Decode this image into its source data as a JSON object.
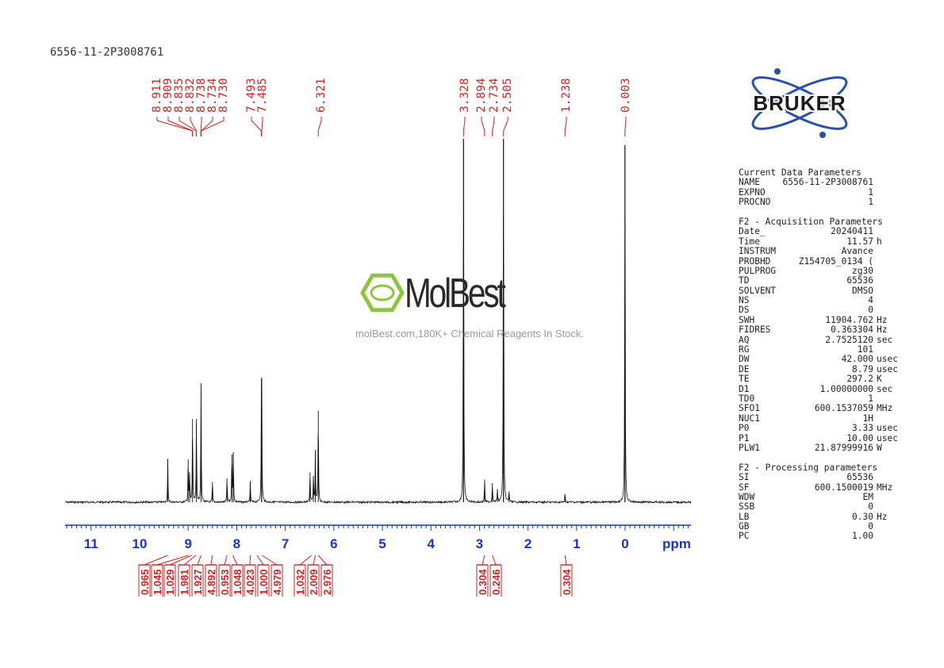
{
  "sample_name": "6556-11-2P3008761",
  "logo": {
    "text": "BRUKER",
    "color_blue": "#2b50a8",
    "color_dark": "#1a1a1a"
  },
  "watermark": {
    "brand": "MolBest",
    "caption": "molBest.com,180K+ Chemical Reagents In Stock.",
    "brand_green": "#8cc63f"
  },
  "colors": {
    "peak_label": "#d22020",
    "axis": "#1a33cc",
    "integral": "#d22020",
    "spectrum": "#111111"
  },
  "chart_data": {
    "type": "line",
    "title": "",
    "xlabel": "ppm",
    "xlim": [
      11.5,
      -1.3
    ],
    "x_direction": "reversed",
    "ticks": [
      11,
      10,
      9,
      8,
      7,
      6,
      5,
      4,
      3,
      2,
      1,
      0
    ],
    "peak_labels": [
      "8.911",
      "8.909",
      "8.835",
      "8.832",
      "8.738",
      "8.734",
      "8.730",
      "7.493",
      "7.485",
      "6.321",
      "3.328",
      "2.894",
      "2.734",
      "2.505",
      "1.238",
      "0.003"
    ],
    "peaks": [
      {
        "ppm": 9.42,
        "h": 0.36
      },
      {
        "ppm": 9.0,
        "h": 0.36
      },
      {
        "ppm": 8.97,
        "h": 0.23
      },
      {
        "ppm": 8.91,
        "h": 0.7
      },
      {
        "ppm": 8.83,
        "h": 0.7
      },
      {
        "ppm": 8.735,
        "h": 1.0
      },
      {
        "ppm": 8.5,
        "h": 0.17
      },
      {
        "ppm": 8.2,
        "h": 0.2
      },
      {
        "ppm": 8.1,
        "h": 0.4
      },
      {
        "ppm": 8.07,
        "h": 0.42
      },
      {
        "ppm": 7.72,
        "h": 0.17
      },
      {
        "ppm": 7.49,
        "h": 0.8
      },
      {
        "ppm": 7.485,
        "h": 0.7
      },
      {
        "ppm": 6.49,
        "h": 0.25
      },
      {
        "ppm": 6.42,
        "h": 0.22
      },
      {
        "ppm": 6.38,
        "h": 0.43
      },
      {
        "ppm": 6.32,
        "h": 0.77
      },
      {
        "ppm": 3.328,
        "h": 3.1
      },
      {
        "ppm": 2.894,
        "h": 0.19
      },
      {
        "ppm": 2.734,
        "h": 0.16
      },
      {
        "ppm": 2.63,
        "h": 0.11
      },
      {
        "ppm": 2.505,
        "h": 3.1
      },
      {
        "ppm": 2.39,
        "h": 0.09
      },
      {
        "ppm": 1.238,
        "h": 0.07
      },
      {
        "ppm": 0.003,
        "h": 3.0
      }
    ],
    "integrals": [
      {
        "ppm": 9.42,
        "value": "0.965"
      },
      {
        "ppm": 9.0,
        "value": "1.045"
      },
      {
        "ppm": 8.93,
        "value": "1.029"
      },
      {
        "ppm": 8.84,
        "value": "1.981"
      },
      {
        "ppm": 8.735,
        "value": "1.927"
      },
      {
        "ppm": 8.5,
        "value": "4.892"
      },
      {
        "ppm": 8.2,
        "value": "0.953"
      },
      {
        "ppm": 8.08,
        "value": "1.048"
      },
      {
        "ppm": 7.72,
        "value": "4.023"
      },
      {
        "ppm": 7.58,
        "value": "1.000"
      },
      {
        "ppm": 7.48,
        "value": "4.979"
      },
      {
        "ppm": 6.46,
        "value": "1.032"
      },
      {
        "ppm": 6.38,
        "value": "2.009"
      },
      {
        "ppm": 6.32,
        "value": "2.976"
      },
      {
        "ppm": 2.894,
        "value": "0.304"
      },
      {
        "ppm": 2.734,
        "value": "0.246"
      },
      {
        "ppm": 1.238,
        "value": "0.304"
      }
    ]
  },
  "params": {
    "sections": [
      {
        "title": "Current Data Parameters",
        "rows": [
          {
            "key": "NAME",
            "value": "6556-11-2P3008761",
            "unit": ""
          },
          {
            "key": "EXPNO",
            "value": "1",
            "unit": ""
          },
          {
            "key": "PROCNO",
            "value": "1",
            "unit": ""
          }
        ]
      },
      {
        "title": "F2 - Acquisition Parameters",
        "rows": [
          {
            "key": "Date_",
            "value": "20240411",
            "unit": ""
          },
          {
            "key": "Time",
            "value": "11.57",
            "unit": "h"
          },
          {
            "key": "INSTRUM",
            "value": "Avance",
            "unit": ""
          },
          {
            "key": "PROBHD",
            "value": "Z154705_0134 (",
            "unit": ""
          },
          {
            "key": "PULPROG",
            "value": "zg30",
            "unit": ""
          },
          {
            "key": "TD",
            "value": "65536",
            "unit": ""
          },
          {
            "key": "SOLVENT",
            "value": "DMSO",
            "unit": ""
          },
          {
            "key": "NS",
            "value": "4",
            "unit": ""
          },
          {
            "key": "DS",
            "value": "0",
            "unit": ""
          },
          {
            "key": "SWH",
            "value": "11904.762",
            "unit": "Hz"
          },
          {
            "key": "FIDRES",
            "value": "0.363304",
            "unit": "Hz"
          },
          {
            "key": "AQ",
            "value": "2.7525120",
            "unit": "sec"
          },
          {
            "key": "RG",
            "value": "101",
            "unit": ""
          },
          {
            "key": "DW",
            "value": "42.000",
            "unit": "usec"
          },
          {
            "key": "DE",
            "value": "8.79",
            "unit": "usec"
          },
          {
            "key": "TE",
            "value": "297.2",
            "unit": "K"
          },
          {
            "key": "D1",
            "value": "1.00000000",
            "unit": "sec"
          },
          {
            "key": "TD0",
            "value": "1",
            "unit": ""
          },
          {
            "key": "SFO1",
            "value": "600.1537059",
            "unit": "MHz"
          },
          {
            "key": "NUC1",
            "value": "1H",
            "unit": ""
          },
          {
            "key": "P0",
            "value": "3.33",
            "unit": "usec"
          },
          {
            "key": "P1",
            "value": "10.00",
            "unit": "usec"
          },
          {
            "key": "PLW1",
            "value": "21.87999916",
            "unit": "W"
          }
        ]
      },
      {
        "title": "F2 - Processing parameters",
        "rows": [
          {
            "key": "SI",
            "value": "65536",
            "unit": ""
          },
          {
            "key": "SF",
            "value": "600.1500019",
            "unit": "MHz"
          },
          {
            "key": "WDW",
            "value": "EM",
            "unit": ""
          },
          {
            "key": "SSB",
            "value": "0",
            "unit": ""
          },
          {
            "key": "LB",
            "value": "0.30",
            "unit": "Hz"
          },
          {
            "key": "GB",
            "value": "0",
            "unit": ""
          },
          {
            "key": "PC",
            "value": "1.00",
            "unit": ""
          }
        ]
      }
    ]
  }
}
